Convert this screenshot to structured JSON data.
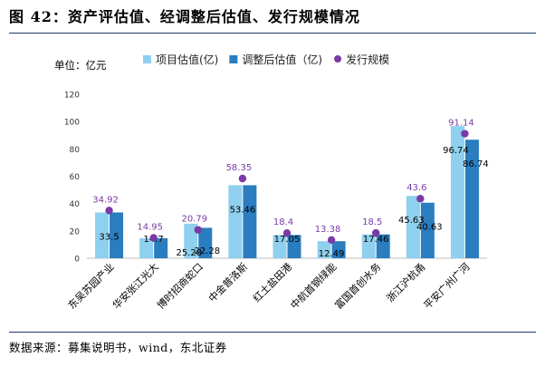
{
  "title": "图 42：资产评估值、经调整后估值、发行规模情况",
  "source": "数据来源：募集说明书，wind，东北证券",
  "chart_data": {
    "type": "bar",
    "unit_label": "单位：亿元",
    "categories": [
      "东吴苏园产业",
      "华安张江光大",
      "博时招商蛇口",
      "中金普洛斯",
      "红土盐田港",
      "中航首钢绿能",
      "富国首创水务",
      "浙江沪杭甬",
      "平安广州广河"
    ],
    "series": [
      {
        "name": "项目估值(亿)",
        "kind": "bar",
        "color": "#8fd0ee",
        "values": [
          33.5,
          14.7,
          25.28,
          53.46,
          17.05,
          12.49,
          17.46,
          45.63,
          96.74
        ],
        "labels": [
          "33.5",
          "14.7",
          "25.28",
          "53.46",
          "17.05",
          "12.49",
          "17.46",
          "45.63",
          "96.74"
        ]
      },
      {
        "name": "调整后估值（亿)",
        "kind": "bar",
        "color": "#2a7dbf",
        "values": [
          33.5,
          14.7,
          22.28,
          53.46,
          17.05,
          12.49,
          17.46,
          40.63,
          86.74
        ],
        "labels": [
          "",
          "",
          "22.28",
          "",
          "",
          "",
          "",
          "40.63",
          "86.74"
        ]
      },
      {
        "name": "发行规模",
        "kind": "scatter",
        "color": "#7b3aa6",
        "values": [
          34.92,
          14.95,
          20.79,
          58.35,
          18.4,
          13.38,
          18.5,
          43.6,
          91.14
        ],
        "labels": [
          "34.92",
          "14.95",
          "20.79",
          "58.35",
          "18.4",
          "13.38",
          "18.5",
          "43.6",
          "91.14"
        ]
      }
    ],
    "ylim": [
      0,
      120
    ],
    "yticks": [
      "0",
      "20",
      "40",
      "60",
      "80",
      "100",
      "120"
    ],
    "legend_position": "top",
    "grid": false
  }
}
